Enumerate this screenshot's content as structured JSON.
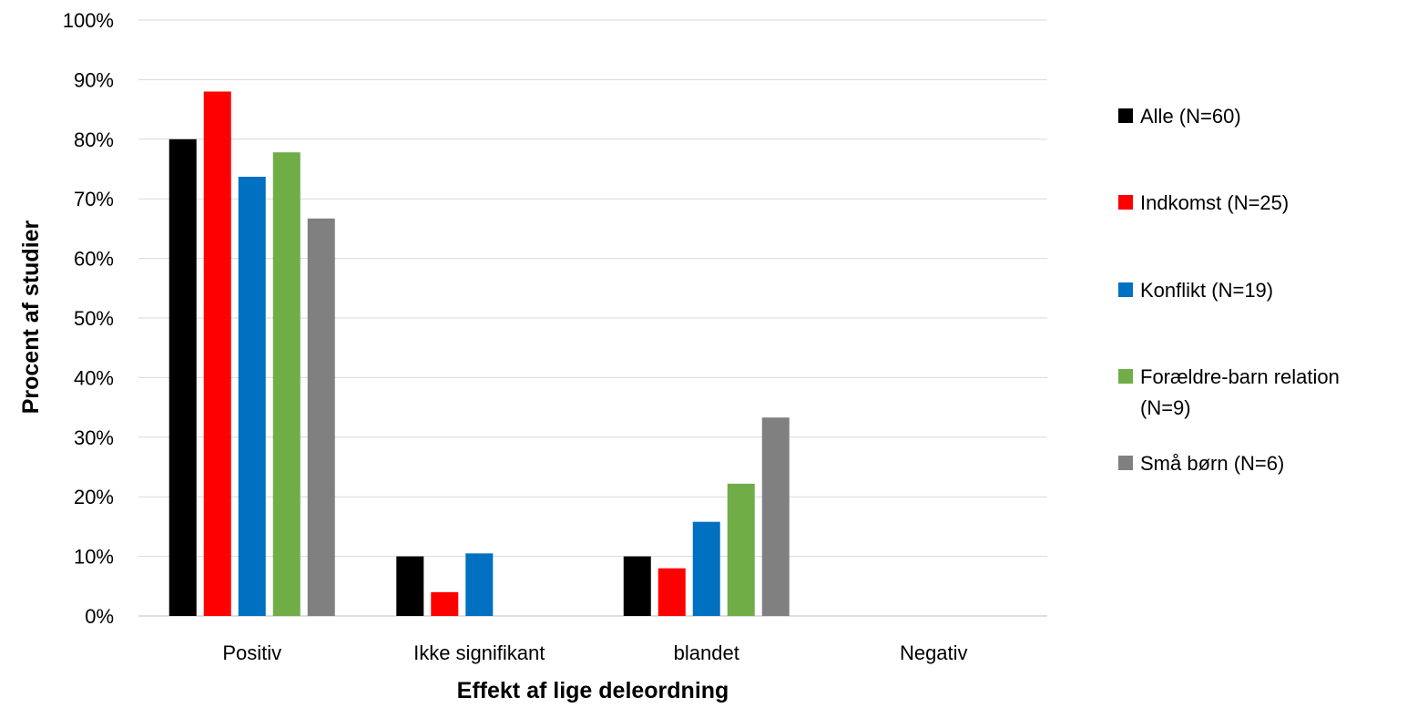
{
  "chart_data": {
    "type": "bar",
    "title": "",
    "xlabel": "Effekt af lige deleordning",
    "ylabel": "Procent af studier",
    "ylim": [
      0,
      100
    ],
    "y_ticks": [
      "0%",
      "10%",
      "20%",
      "30%",
      "40%",
      "50%",
      "60%",
      "70%",
      "80%",
      "90%",
      "100%"
    ],
    "categories": [
      "Positiv",
      "Ikke signifikant",
      "blandet",
      "Negativ"
    ],
    "grid": true,
    "legend_position": "right",
    "series": [
      {
        "name": "Alle (N=60)",
        "legend_lines": [
          "Alle (N=60)"
        ],
        "color": "#000000",
        "values": [
          80,
          10,
          10,
          0
        ]
      },
      {
        "name": "Indkomst (N=25)",
        "legend_lines": [
          "Indkomst (N=25)"
        ],
        "color": "#ff0000",
        "values": [
          88,
          4,
          8,
          0
        ]
      },
      {
        "name": "Konflikt (N=19)",
        "legend_lines": [
          "Konflikt (N=19)"
        ],
        "color": "#0070c0",
        "values": [
          73.7,
          10.5,
          15.8,
          0
        ]
      },
      {
        "name": "Forældre-barn relation (N=9)",
        "legend_lines": [
          "Forældre-barn relation",
          "(N=9)"
        ],
        "color": "#70ad47",
        "values": [
          77.8,
          0,
          22.2,
          0
        ]
      },
      {
        "name": "Små børn (N=6)",
        "legend_lines": [
          "Små børn (N=6)"
        ],
        "color": "#808080",
        "values": [
          66.7,
          0,
          33.3,
          0
        ]
      }
    ]
  }
}
